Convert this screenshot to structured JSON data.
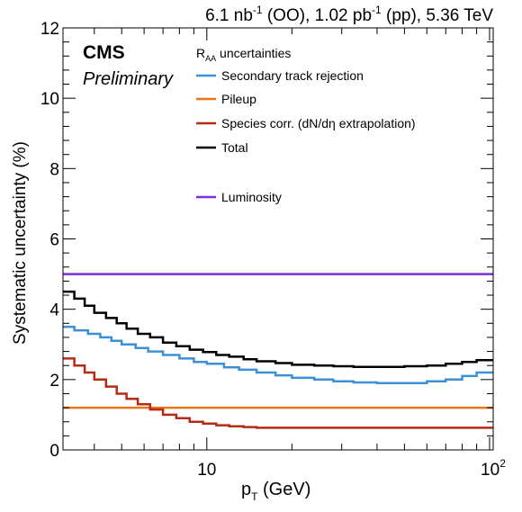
{
  "chart_data": {
    "type": "line",
    "title": "",
    "header_parts": {
      "lumi_oo": "6.1 nb",
      "lumi_oo_exp": "-1",
      "oo": " (OO), ",
      "lumi_pp": "1.02 pb",
      "lumi_pp_exp": "-1",
      "pp": " (pp), 5.36 TeV"
    },
    "experiment": "CMS",
    "status": "Preliminary",
    "legend_title": "R",
    "legend_title_sub": "AA",
    "legend_title_rest": " uncertainties",
    "ylabel": "Systematic uncertainty (%)",
    "xlabel_main": "p",
    "xlabel_sub": "T",
    "xlabel_rest": " (GeV)",
    "xscale": "log",
    "xlim": [
      3.1,
      103
    ],
    "ylim": [
      0,
      12
    ],
    "yticks": [
      0,
      2,
      4,
      6,
      8,
      10,
      12
    ],
    "ytick_labels": [
      "0",
      "2",
      "4",
      "6",
      "8",
      "10",
      "12"
    ],
    "xtick_labels": {
      "ten": "10",
      "hundred_base": "10",
      "hundred_exp": "2"
    },
    "legend_placement": "top-right",
    "grid": false,
    "series": [
      {
        "name": "Secondary track rejection",
        "color": "#3d8fd6",
        "x": [
          3.1,
          3.4,
          3.8,
          4.2,
          4.6,
          5.0,
          5.6,
          6.2,
          7.0,
          8.0,
          9.0,
          10.0,
          11.5,
          13.0,
          15.0,
          17.5,
          20.0,
          24.0,
          28.0,
          33.0,
          40.0,
          50.0,
          60.0,
          70.0,
          80.0,
          90.0,
          103.0
        ],
        "y": [
          3.5,
          3.4,
          3.3,
          3.2,
          3.1,
          3.0,
          2.9,
          2.8,
          2.7,
          2.6,
          2.5,
          2.45,
          2.35,
          2.28,
          2.2,
          2.12,
          2.05,
          2.0,
          1.95,
          1.92,
          1.9,
          1.9,
          1.95,
          2.0,
          2.1,
          2.2,
          2.2
        ]
      },
      {
        "name": "Pileup",
        "color": "#e8761c",
        "x": [
          3.1,
          103.0
        ],
        "y": [
          1.2,
          1.2
        ]
      },
      {
        "name": "Species corr. (dN/dη extrapolation)",
        "color": "#b52b14",
        "x": [
          3.1,
          3.4,
          3.7,
          4.0,
          4.4,
          4.8,
          5.2,
          5.7,
          6.3,
          7.0,
          7.8,
          8.7,
          9.7,
          10.8,
          12.0,
          13.5,
          15.0,
          103.0
        ],
        "y": [
          2.6,
          2.4,
          2.2,
          2.0,
          1.8,
          1.6,
          1.45,
          1.3,
          1.15,
          1.0,
          0.9,
          0.8,
          0.75,
          0.7,
          0.67,
          0.65,
          0.63,
          0.63
        ]
      },
      {
        "name": "Total",
        "color": "#000000",
        "x": [
          3.1,
          3.4,
          3.7,
          4.0,
          4.4,
          4.8,
          5.2,
          5.7,
          6.3,
          7.0,
          7.8,
          8.7,
          9.7,
          10.8,
          12.0,
          13.5,
          15.0,
          17.5,
          20.0,
          24.0,
          28.0,
          33.0,
          40.0,
          50.0,
          60.0,
          70.0,
          80.0,
          90.0,
          103.0
        ],
        "y": [
          4.5,
          4.3,
          4.1,
          3.9,
          3.75,
          3.6,
          3.45,
          3.3,
          3.2,
          3.05,
          2.95,
          2.85,
          2.78,
          2.7,
          2.65,
          2.58,
          2.52,
          2.47,
          2.42,
          2.4,
          2.38,
          2.36,
          2.36,
          2.38,
          2.4,
          2.45,
          2.5,
          2.55,
          2.6
        ]
      },
      {
        "name": "Luminosity",
        "color": "#7b2fd6",
        "x": [
          3.1,
          103.0
        ],
        "y": [
          5.0,
          5.0
        ]
      }
    ]
  }
}
